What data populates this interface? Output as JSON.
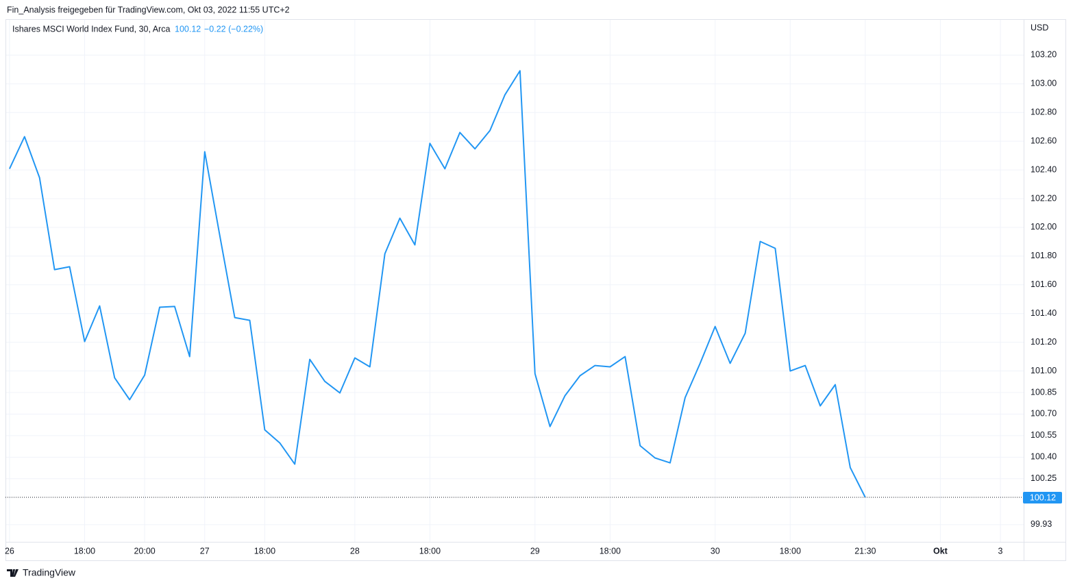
{
  "header": "Fin_Analysis freigegeben für TradingView.com, Okt 03, 2022 11:55 UTC+2",
  "footer": "TradingView",
  "chart_data": {
    "type": "line",
    "title": "Ishares MSCI World Index Fund, 30, Arca",
    "legend_change": "−0.22 (−0.22%)",
    "currency": "USD",
    "series": [
      {
        "name": "Ishares MSCI World Index Fund",
        "color": "#2196f3",
        "values": [
          102.408,
          102.632,
          102.346,
          101.706,
          101.726,
          101.205,
          101.453,
          100.952,
          100.8,
          100.971,
          101.444,
          101.449,
          101.1,
          102.527,
          101.945,
          101.372,
          101.353,
          100.59,
          100.499,
          100.351,
          101.081,
          100.928,
          100.847,
          101.091,
          101.029,
          101.816,
          102.064,
          101.878,
          102.585,
          102.408,
          102.661,
          102.547,
          102.675,
          102.924,
          103.091,
          100.981,
          100.613,
          100.828,
          100.967,
          101.038,
          101.029,
          101.1,
          100.48,
          100.394,
          100.36,
          100.814,
          101.053,
          101.31,
          101.053,
          101.263,
          101.902,
          101.854,
          101.0,
          101.038,
          100.757,
          100.905,
          100.327,
          100.12
        ]
      }
    ],
    "xlim": [
      -0.27,
      67.55
    ],
    "xticks": [
      {
        "value": 0,
        "label": "26"
      },
      {
        "value": 5,
        "label": "18:00"
      },
      {
        "value": 9,
        "label": "20:00"
      },
      {
        "value": 13,
        "label": "27"
      },
      {
        "value": 17,
        "label": "18:00"
      },
      {
        "value": 23,
        "label": "28"
      },
      {
        "value": 28,
        "label": "18:00"
      },
      {
        "value": 35,
        "label": "29"
      },
      {
        "value": 40,
        "label": "18:00"
      },
      {
        "value": 47,
        "label": "30"
      },
      {
        "value": 52,
        "label": "18:00"
      },
      {
        "value": 57,
        "label": "21:30"
      },
      {
        "value": 62,
        "label": "Okt"
      },
      {
        "value": 66,
        "label": "3"
      }
    ],
    "ylim": [
      99.81,
      103.45
    ],
    "yticks": [
      99.93,
      100.25,
      {
        "value": 100.4,
        "label": "100.40"
      },
      100.55,
      {
        "value": 100.7,
        "label": "100.70"
      },
      100.85,
      {
        "value": 101,
        "label": "101.00"
      },
      {
        "value": 101.2,
        "label": "101.20"
      },
      {
        "value": 101.4,
        "label": "101.40"
      },
      {
        "value": 101.6,
        "label": "101.60"
      },
      {
        "value": 101.8,
        "label": "101.80"
      },
      {
        "value": 102,
        "label": "102.00"
      },
      {
        "value": 102.2,
        "label": "102.20"
      },
      {
        "value": 102.4,
        "label": "102.40"
      },
      {
        "value": 102.6,
        "label": "102.60"
      },
      {
        "value": 102.8,
        "label": "102.80"
      },
      {
        "value": 103,
        "label": "103.00"
      },
      {
        "value": 103.2,
        "label": "103.20"
      }
    ],
    "grid": true
  }
}
